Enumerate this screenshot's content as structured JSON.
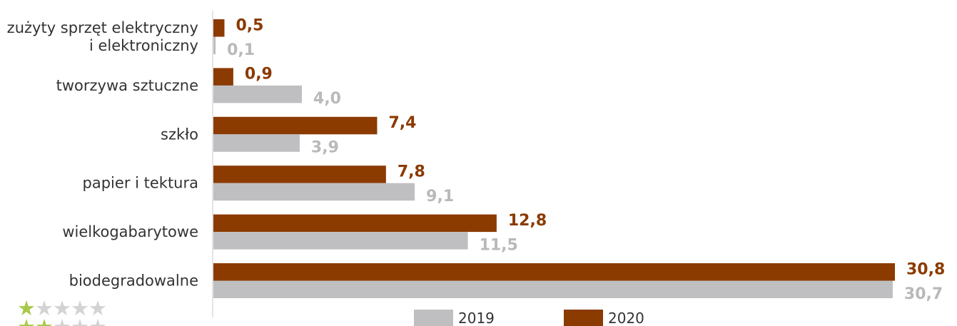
{
  "header": {
    "title_fragment": ""
  },
  "chart_data": {
    "type": "bar",
    "orientation": "horizontal",
    "categories": [
      "zużyty sprzęt elektryczny i elektroniczny",
      "tworzywa sztuczne",
      "szkło",
      "papier i tektura",
      "wielkogabarytowe",
      "biodegradowalne"
    ],
    "category_label_lines": [
      [
        "zużyty sprzęt elektryczny",
        "i elektroniczny"
      ],
      [
        "tworzywa sztuczne"
      ],
      [
        "szkło"
      ],
      [
        "papier i tektura"
      ],
      [
        "wielkogabarytowe"
      ],
      [
        "biodegradowalne"
      ]
    ],
    "series": [
      {
        "name": "2020",
        "color": "#8b3a00",
        "values": [
          0.5,
          0.9,
          7.4,
          7.8,
          12.8,
          30.8
        ],
        "labels": [
          "0,5",
          "0,9",
          "7,4",
          "7,8",
          "12,8",
          "30,8"
        ]
      },
      {
        "name": "2019",
        "color": "#bfbfc2",
        "values": [
          0.1,
          4.0,
          3.9,
          9.1,
          11.5,
          30.7
        ],
        "labels": [
          "0,1",
          "4,0",
          "3,9",
          "9,1",
          "11,5",
          "30,7"
        ]
      }
    ],
    "legend_order": [
      "2019",
      "2020"
    ],
    "legend_position": "bottom",
    "xlim": [
      0,
      30.8
    ],
    "grid": false,
    "title": "",
    "xlabel": "",
    "ylabel": ""
  },
  "rating": {
    "rows": [
      {
        "filled": 1,
        "total": 5
      },
      {
        "filled": 2,
        "total": 5
      }
    ],
    "on_color": "#a9c94a",
    "off_color": "#d3d3d3"
  }
}
